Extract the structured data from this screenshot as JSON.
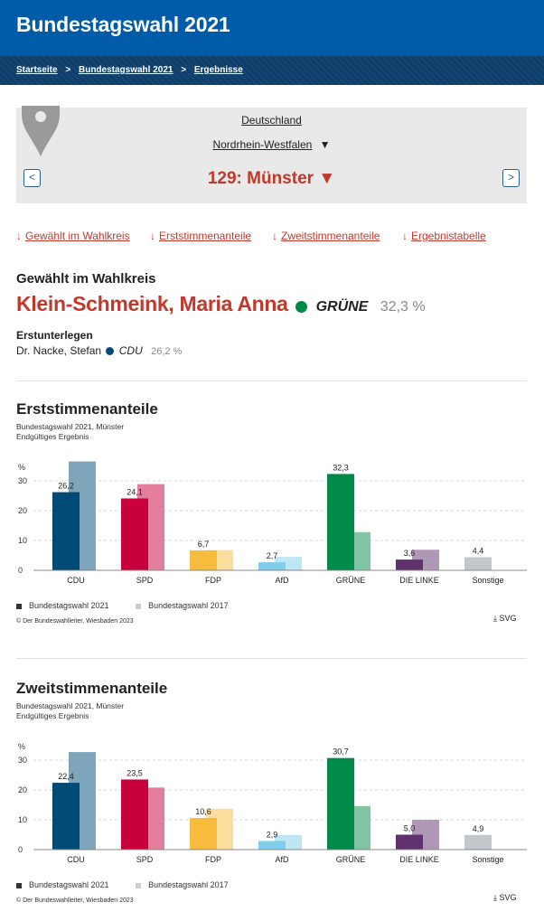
{
  "header": {
    "title": "Bundestagswahl 2021"
  },
  "breadcrumb": [
    "Startseite",
    "Bundestagswahl 2021",
    "Ergebnisse"
  ],
  "breadcrumb_sep": ">",
  "region": {
    "country": "Deutschland",
    "state": "Nordrhein-Westfalen",
    "state_arrow": "▼",
    "district": "129: Münster ▼",
    "prev": "<",
    "next": ">"
  },
  "anchors": [
    {
      "label": "Gewählt im Wahlkreis"
    },
    {
      "label": "Erststimmenanteile"
    },
    {
      "label": "Zweitstimmenanteile"
    },
    {
      "label": "Ergebnistabelle"
    }
  ],
  "anchor_arrow": "↓",
  "elected": {
    "heading": "Gewählt im Wahlkreis",
    "name": "Klein-Schmeink, Maria Anna",
    "party": "GRÜNE",
    "party_color": "#008a4a",
    "pct": "32,3 %",
    "runner_heading": "Erstunterlegen",
    "runner_name": "Dr. Nacke, Stefan",
    "runner_party": "CDU",
    "runner_color": "#004b76",
    "runner_pct": "26,2 %"
  },
  "charts": [
    {
      "title": "Erststimmenanteile",
      "subtitle1": "Bundestagswahl 2021, Münster",
      "subtitle2": "Endgültiges Ergebnis",
      "legend_2021": "Bundestagswahl 2021",
      "legend_2017": "Bundestagswahl 2017",
      "copyright": "© Der Bundeswahlleiter, Wiesbaden 2023",
      "download": "SVG"
    },
    {
      "title": "Zweitstimmenanteile",
      "subtitle1": "Bundestagswahl 2021, Münster",
      "subtitle2": "Endgültiges Ergebnis",
      "legend_2021": "Bundestagswahl 2021",
      "legend_2017": "Bundestagswahl 2017",
      "copyright": "© Der Bundeswahlleiter, Wiesbaden 2023",
      "download": "SVG"
    }
  ],
  "chart_data": [
    {
      "type": "bar",
      "title": "Erststimmenanteile",
      "ylabel": "%",
      "ylim": [
        0,
        36
      ],
      "yticks": [
        0,
        10,
        20,
        30
      ],
      "categories": [
        "CDU",
        "SPD",
        "FDP",
        "AfD",
        "GRÜNE",
        "DIE LINKE",
        "Sonstige"
      ],
      "colors": [
        "#004b76",
        "#c8003c",
        "#f7bb3d",
        "#80cdec",
        "#008a4a",
        "#5f316e",
        "#c2c7cc"
      ],
      "colors_2017": [
        "#7fa5ba",
        "#e37f9d",
        "#fbdd9e",
        "#bfe6f5",
        "#80c4a4",
        "#af98b6",
        "#c2c7cc"
      ],
      "series": [
        {
          "name": "Bundestagswahl 2021",
          "values": [
            26.2,
            24.1,
            6.7,
            2.7,
            32.3,
            3.6,
            4.4
          ],
          "labels": [
            "26,2",
            "24,1",
            "6,7",
            "2,7",
            "32,3",
            "3,6",
            "4,4"
          ]
        },
        {
          "name": "Bundestagswahl 2017",
          "values": [
            36.5,
            28.9,
            6.8,
            4.5,
            12.8,
            6.9,
            null
          ]
        }
      ],
      "legend": "bottom-left"
    },
    {
      "type": "bar",
      "title": "Zweitstimmenanteile",
      "ylabel": "%",
      "ylim": [
        0,
        36
      ],
      "yticks": [
        0,
        10,
        20,
        30
      ],
      "categories": [
        "CDU",
        "SPD",
        "FDP",
        "AfD",
        "GRÜNE",
        "DIE LINKE",
        "Sonstige"
      ],
      "colors": [
        "#004b76",
        "#c8003c",
        "#f7bb3d",
        "#80cdec",
        "#008a4a",
        "#5f316e",
        "#c2c7cc"
      ],
      "colors_2017": [
        "#7fa5ba",
        "#e37f9d",
        "#fbdd9e",
        "#bfe6f5",
        "#80c4a4",
        "#af98b6",
        "#c2c7cc"
      ],
      "series": [
        {
          "name": "Bundestagswahl 2021",
          "values": [
            22.4,
            23.5,
            10.6,
            2.9,
            30.7,
            5.0,
            4.9
          ],
          "labels": [
            "22,4",
            "23,5",
            "10,6",
            "2,9",
            "30,7",
            "5,0",
            "4,9"
          ]
        },
        {
          "name": "Bundestagswahl 2017",
          "values": [
            32.7,
            20.8,
            13.7,
            4.9,
            14.6,
            10.0,
            null
          ]
        }
      ],
      "legend": "bottom-left"
    }
  ]
}
